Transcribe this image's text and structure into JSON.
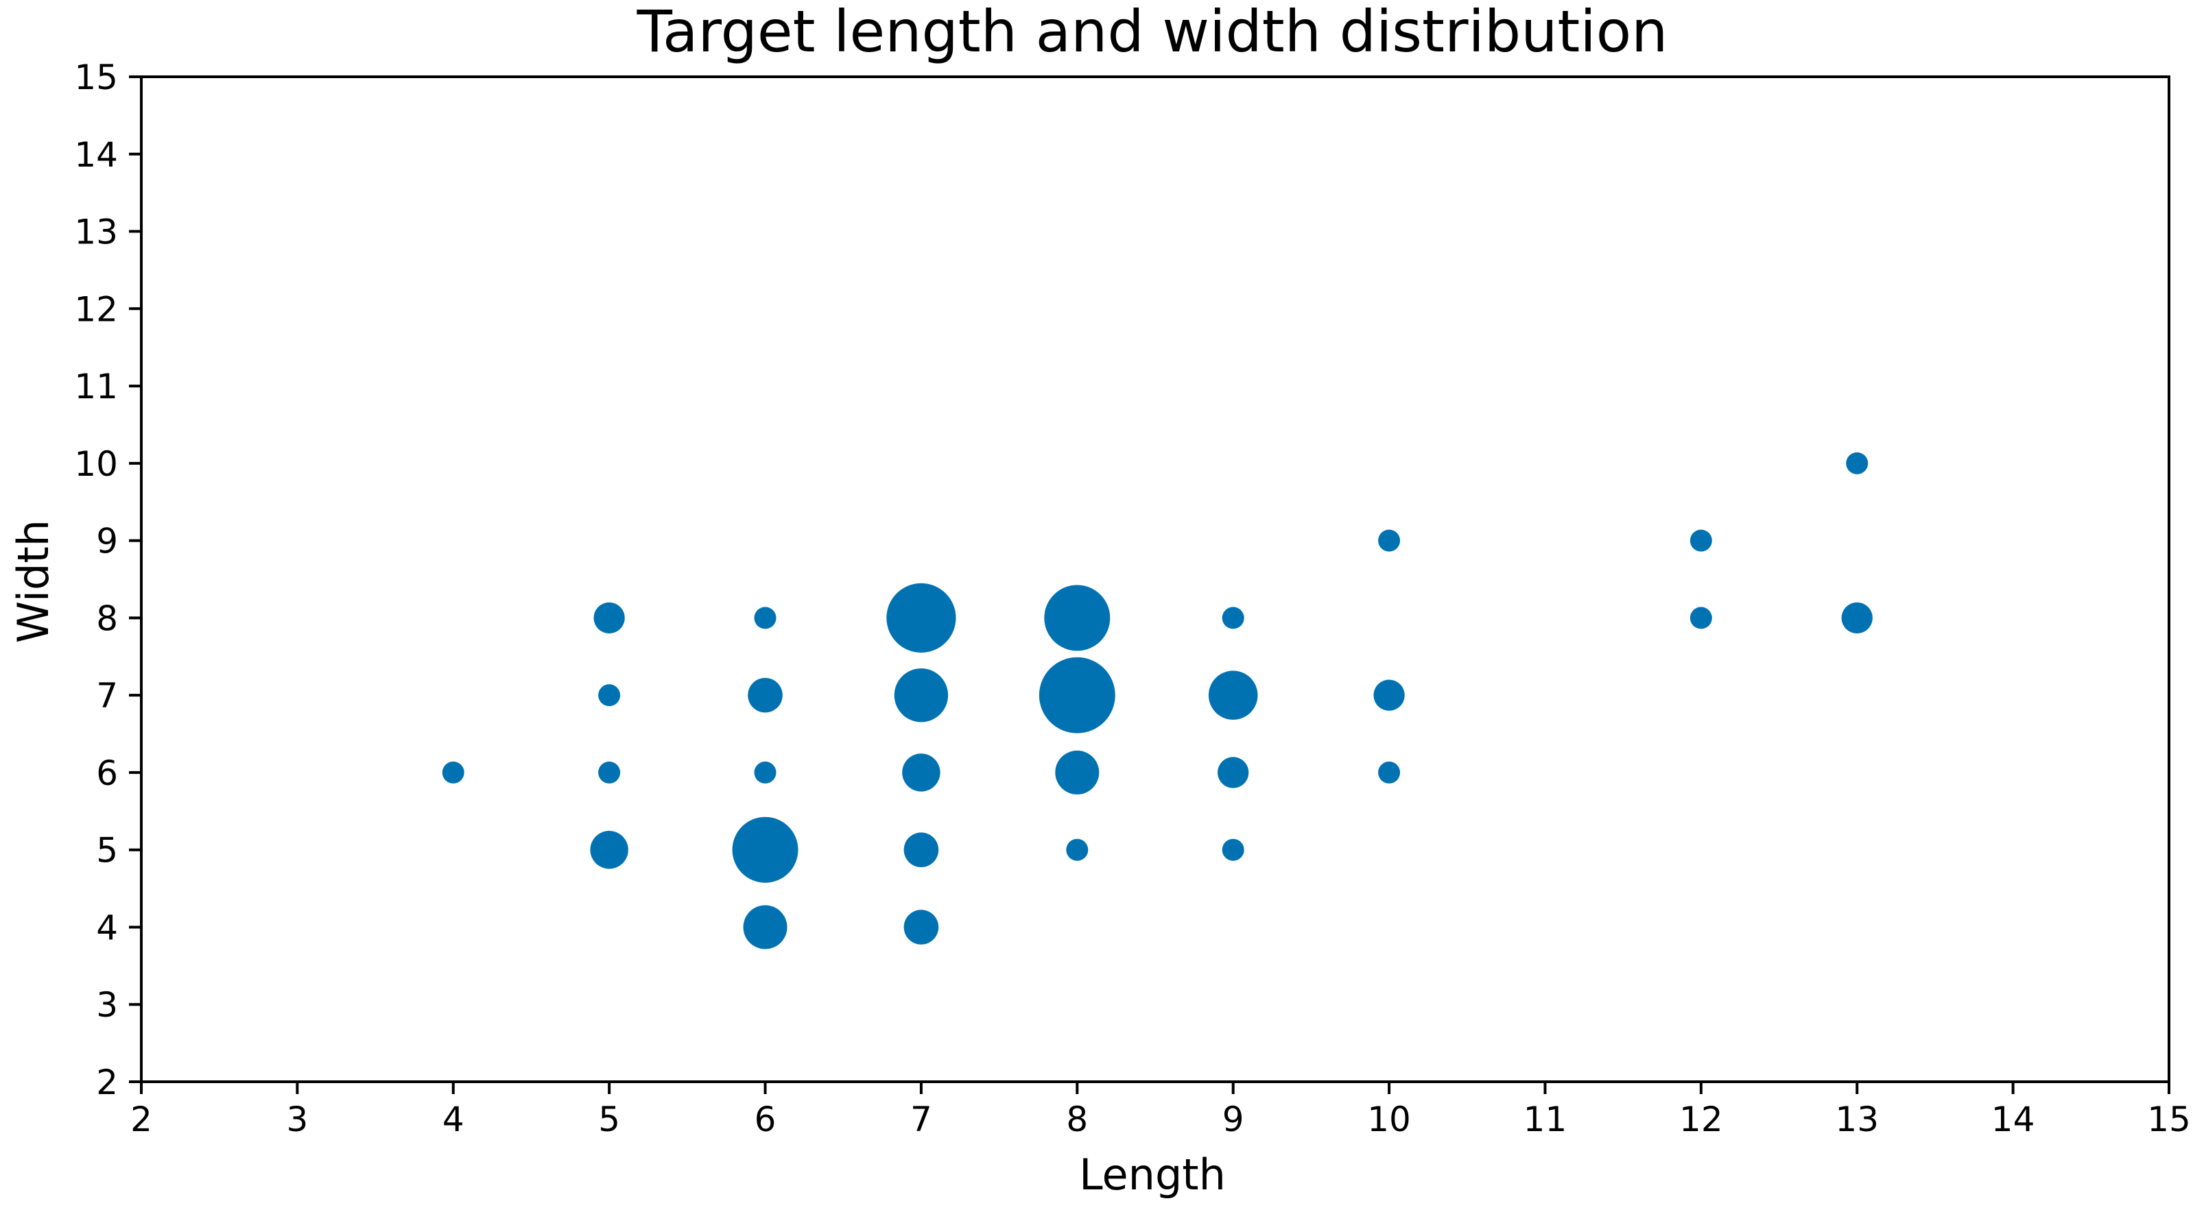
{
  "chart_data": {
    "type": "scatter",
    "title": "Target length and width distribution",
    "xlabel": "Length",
    "ylabel": "Width",
    "xlim": [
      2,
      15
    ],
    "ylim": [
      2,
      15
    ],
    "xticks": [
      "2",
      "3",
      "4",
      "5",
      "6",
      "7",
      "8",
      "9",
      "10",
      "11",
      "12",
      "13",
      "14",
      "15"
    ],
    "yticks": [
      "2",
      "3",
      "4",
      "5",
      "6",
      "7",
      "8",
      "9",
      "10",
      "11",
      "12",
      "13",
      "14",
      "15"
    ],
    "grid": false,
    "color": "#0072B2",
    "size_encoding": "relative frequency (larger marker = more targets)",
    "points": [
      {
        "x": 4,
        "y": 6,
        "size": 1
      },
      {
        "x": 5,
        "y": 5,
        "size": 3
      },
      {
        "x": 5,
        "y": 6,
        "size": 1
      },
      {
        "x": 5,
        "y": 7,
        "size": 1
      },
      {
        "x": 5,
        "y": 8,
        "size": 2
      },
      {
        "x": 6,
        "y": 4,
        "size": 4
      },
      {
        "x": 6,
        "y": 5,
        "size": 9
      },
      {
        "x": 6,
        "y": 6,
        "size": 1
      },
      {
        "x": 6,
        "y": 7,
        "size": 2.5
      },
      {
        "x": 6,
        "y": 8,
        "size": 1
      },
      {
        "x": 7,
        "y": 4,
        "size": 2.5
      },
      {
        "x": 7,
        "y": 5,
        "size": 2.5
      },
      {
        "x": 7,
        "y": 6,
        "size": 3
      },
      {
        "x": 7,
        "y": 7,
        "size": 6
      },
      {
        "x": 7,
        "y": 8,
        "size": 10
      },
      {
        "x": 8,
        "y": 5,
        "size": 1
      },
      {
        "x": 8,
        "y": 6,
        "size": 4
      },
      {
        "x": 8,
        "y": 7,
        "size": 12
      },
      {
        "x": 8,
        "y": 8,
        "size": 9
      },
      {
        "x": 9,
        "y": 5,
        "size": 1
      },
      {
        "x": 9,
        "y": 6,
        "size": 2
      },
      {
        "x": 9,
        "y": 7,
        "size": 5
      },
      {
        "x": 9,
        "y": 8,
        "size": 1
      },
      {
        "x": 10,
        "y": 6,
        "size": 1
      },
      {
        "x": 10,
        "y": 7,
        "size": 2
      },
      {
        "x": 10,
        "y": 9,
        "size": 1
      },
      {
        "x": 12,
        "y": 8,
        "size": 1
      },
      {
        "x": 12,
        "y": 9,
        "size": 1
      },
      {
        "x": 13,
        "y": 8,
        "size": 2
      },
      {
        "x": 13,
        "y": 10,
        "size": 1
      }
    ]
  }
}
